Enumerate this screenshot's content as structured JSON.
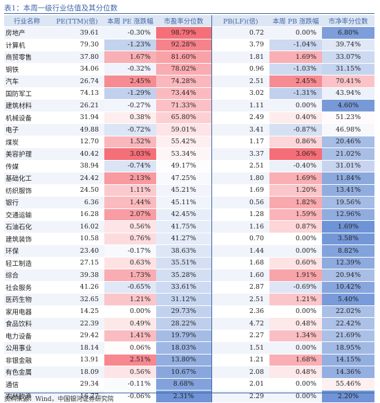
{
  "title": "表1：本周一级行业估值及其分位数",
  "source": "资料来源：Wind，中国银河证券研究院",
  "headers": [
    "行业名称",
    "PE(TTM)(倍)",
    "本周 PE 涨跌幅",
    "市盈率分位数",
    "PB(LF)(倍)",
    "本周 PB 涨跌幅",
    "市净率分位数"
  ],
  "rows": [
    [
      "房地产",
      "39.61",
      "-0.30%",
      "98.79%",
      "0.72",
      "0.00%",
      "6.80%"
    ],
    [
      "计算机",
      "79.30",
      "-1.23%",
      "92.28%",
      "3.79",
      "-1.04%",
      "39.74%"
    ],
    [
      "商贸零售",
      "37.80",
      "1.67%",
      "81.60%",
      "1.81",
      "1.69%",
      "33.07%"
    ],
    [
      "钢铁",
      "34.06",
      "-0.32%",
      "78.02%",
      "0.96",
      "-1.03%",
      "31.15%"
    ],
    [
      "汽车",
      "26.74",
      "2.45%",
      "74.28%",
      "2.51",
      "2.45%",
      "70.41%"
    ],
    [
      "国防军工",
      "74.13",
      "-1.29%",
      "73.44%",
      "3.02",
      "-1.31%",
      "43.94%"
    ],
    [
      "建筑材料",
      "26.21",
      "-0.27%",
      "71.33%",
      "1.11",
      "0.00%",
      "4.60%"
    ],
    [
      "机械设备",
      "31.94",
      "0.38%",
      "65.80%",
      "2.49",
      "0.40%",
      "51.23%"
    ],
    [
      "电子",
      "49.88",
      "-0.72%",
      "59.01%",
      "3.41",
      "-0.87%",
      "46.98%"
    ],
    [
      "煤炭",
      "12.70",
      "1.52%",
      "55.42%",
      "1.17",
      "0.86%",
      "20.46%"
    ],
    [
      "美容护理",
      "40.42",
      "3.03%",
      "53.34%",
      "3.37",
      "3.06%",
      "21.02%"
    ],
    [
      "传媒",
      "38.94",
      "-0.74%",
      "49.17%",
      "2.51",
      "-0.40%",
      "31.01%"
    ],
    [
      "基础化工",
      "24.42",
      "2.13%",
      "47.25%",
      "1.80",
      "1.69%",
      "11.84%"
    ],
    [
      "纺织服饰",
      "24.50",
      "1.11%",
      "45.21%",
      "1.69",
      "1.20%",
      "13.41%"
    ],
    [
      "银行",
      "6.36",
      "1.44%",
      "45.11%",
      "0.56",
      "1.82%",
      "19.56%"
    ],
    [
      "交通运输",
      "16.28",
      "2.07%",
      "42.45%",
      "1.28",
      "1.59%",
      "12.96%"
    ],
    [
      "石油石化",
      "16.02",
      "0.56%",
      "41.75%",
      "1.16",
      "0.87%",
      "1.69%"
    ],
    [
      "建筑装饰",
      "10.58",
      "0.76%",
      "41.27%",
      "0.70",
      "0.00%",
      "3.58%"
    ],
    [
      "环保",
      "23.40",
      "-0.17%",
      "38.63%",
      "1.44",
      "0.00%",
      "8.82%"
    ],
    [
      "轻工制造",
      "27.15",
      "0.63%",
      "35.51%",
      "1.68",
      "0.60%",
      "12.39%"
    ],
    [
      "综合",
      "39.38",
      "1.73%",
      "35.28%",
      "1.60",
      "1.91%",
      "20.94%"
    ],
    [
      "社会服务",
      "41.26",
      "-0.65%",
      "33.61%",
      "2.87",
      "-0.69%",
      "10.42%"
    ],
    [
      "医药生物",
      "32.65",
      "1.21%",
      "31.12%",
      "2.51",
      "1.21%",
      "5.40%"
    ],
    [
      "家用电器",
      "14.25",
      "0.00%",
      "29.73%",
      "2.36",
      "0.00%",
      "22.02%"
    ],
    [
      "食品饮料",
      "22.39",
      "0.49%",
      "28.22%",
      "4.72",
      "0.48%",
      "22.42%"
    ],
    [
      "电力设备",
      "29.42",
      "1.41%",
      "19.79%",
      "2.27",
      "1.34%",
      "21.69%"
    ],
    [
      "公用事业",
      "18.14",
      "0.06%",
      "18.03%",
      "1.51",
      "0.00%",
      "18.95%"
    ],
    [
      "非银金融",
      "13.91",
      "2.51%",
      "13.80%",
      "1.21",
      "1.68%",
      "14.15%"
    ],
    [
      "有色金属",
      "18.09",
      "0.56%",
      "10.67%",
      "2.08",
      "0.48%",
      "14.36%"
    ],
    [
      "通信",
      "29.34",
      "-0.11%",
      "8.68%",
      "2.01",
      "0.00%",
      "55.46%"
    ],
    [
      "农林牧渔",
      "16.77",
      "-0.06%",
      "2.31%",
      "2.29",
      "0.00%",
      "2.20%"
    ]
  ],
  "colors": {
    "header_bg": "#dde6f3",
    "header_text": "#3f66a6",
    "positive_max": "#f4646e",
    "negative_max": "#6189d2",
    "neutral": "#ffffff"
  }
}
